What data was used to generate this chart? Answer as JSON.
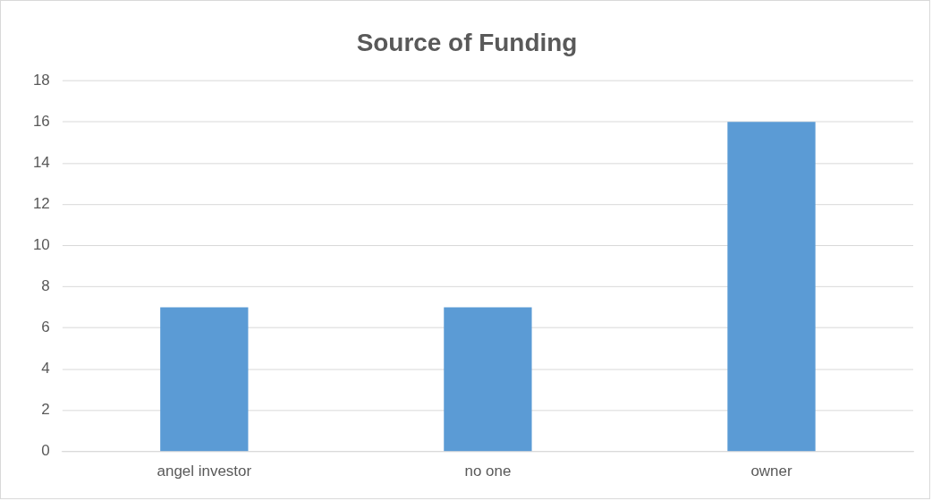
{
  "chart_data": {
    "type": "bar",
    "title": "Source of Funding",
    "categories": [
      "angel investor",
      "no one",
      "owner"
    ],
    "values": [
      7,
      7,
      16
    ],
    "color": "#5b9bd5",
    "ylim": [
      0,
      18
    ],
    "yticks": [
      0,
      2,
      4,
      6,
      8,
      10,
      12,
      14,
      16,
      18
    ],
    "grid": "y",
    "legend": false
  }
}
